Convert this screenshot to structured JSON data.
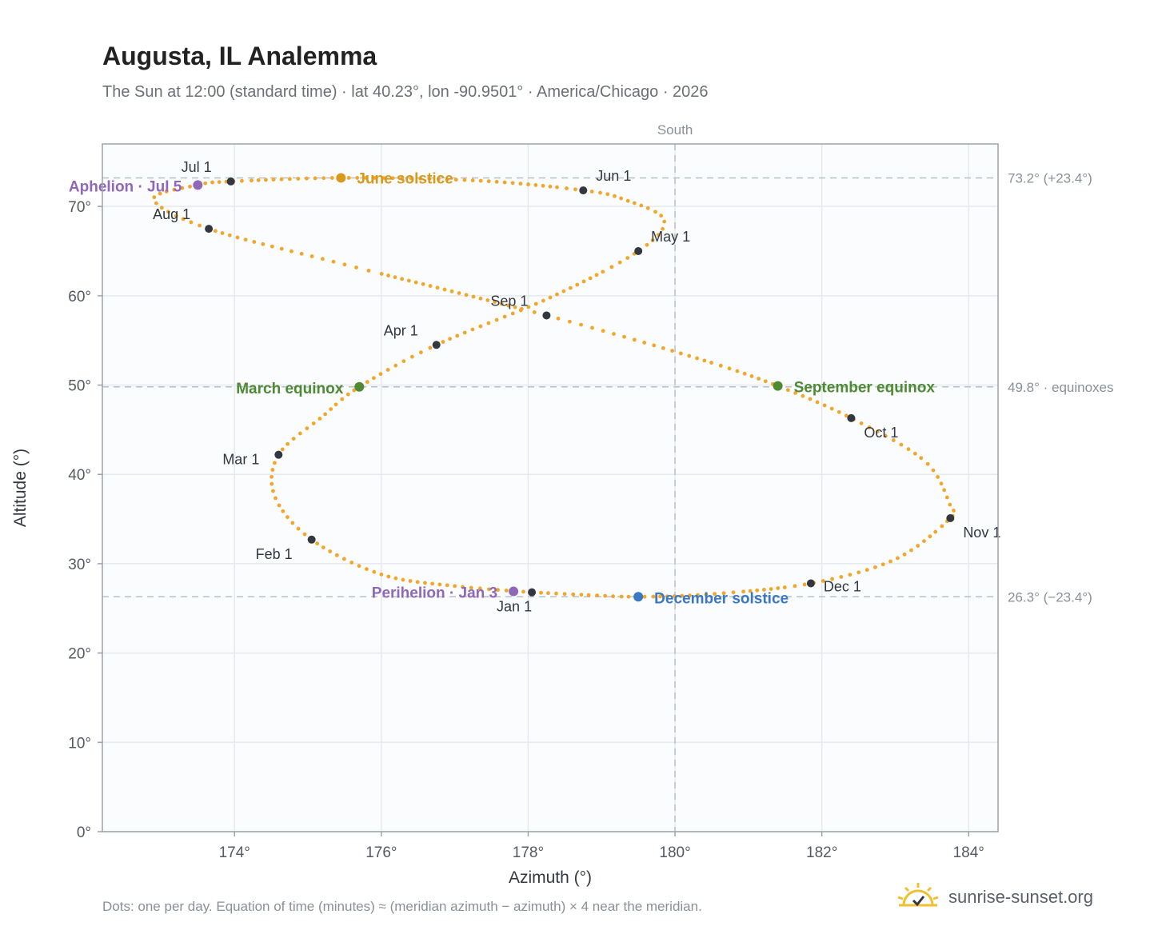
{
  "title": "Augusta, IL Analemma",
  "subtitle": "The Sun at 12:00 (standard time) · lat 40.23°, lon -90.9501° · America/Chicago · 2026",
  "footnote": "Dots: one per day. Equation of time (minutes) ≈ (meridian azimuth − azimuth) × 4 near the meridian.",
  "brand": {
    "name": "sunrise-sunset.org",
    "icon": "sun-logo-icon",
    "color": "#f0c030"
  },
  "chart_data": {
    "type": "scatter",
    "xlabel": "Azimuth (°)",
    "ylabel": "Altitude (°)",
    "xlim": [
      172.2,
      184.4
    ],
    "ylim": [
      0,
      77
    ],
    "xticks": [
      174,
      176,
      178,
      180,
      182,
      184
    ],
    "xtick_labels": [
      "174°",
      "176°",
      "178°",
      "180°",
      "182°",
      "184°"
    ],
    "yticks": [
      0,
      10,
      20,
      30,
      40,
      50,
      60,
      70
    ],
    "ytick_labels": [
      "0°",
      "10°",
      "20°",
      "30°",
      "40°",
      "50°",
      "60°",
      "70°"
    ],
    "grid": true,
    "meridian": {
      "azimuth": 180,
      "label": "South"
    },
    "reference_lines": [
      {
        "altitude": 73.2,
        "label": "73.2° (+23.4°)"
      },
      {
        "altitude": 49.8,
        "label": "49.8° · equinoxes"
      },
      {
        "altitude": 26.3,
        "label": "26.3° (−23.4°)"
      }
    ],
    "colors": {
      "path": "#f2a62a",
      "month": "#333840",
      "equinox": "#4e8a34",
      "june": "#d89a1c",
      "december": "#3a78c2",
      "apsis": "#9068b8",
      "grid": "#e6e9ee",
      "reference": "#b8c0c8",
      "plot_bg": "#fafcfe",
      "frame": "#9aa3ad"
    },
    "path_keypoints": [
      {
        "az": 178.05,
        "alt": 26.8
      },
      {
        "az": 177.0,
        "alt": 27.5
      },
      {
        "az": 176.0,
        "alt": 28.8
      },
      {
        "az": 175.05,
        "alt": 32.7
      },
      {
        "az": 174.55,
        "alt": 37.5
      },
      {
        "az": 174.6,
        "alt": 42.2
      },
      {
        "az": 175.2,
        "alt": 46.5
      },
      {
        "az": 175.7,
        "alt": 49.8
      },
      {
        "az": 176.75,
        "alt": 54.5
      },
      {
        "az": 178.3,
        "alt": 59.8
      },
      {
        "az": 179.5,
        "alt": 65.0
      },
      {
        "az": 179.85,
        "alt": 68.5
      },
      {
        "az": 179.3,
        "alt": 70.8
      },
      {
        "az": 178.75,
        "alt": 71.8
      },
      {
        "az": 177.3,
        "alt": 72.9
      },
      {
        "az": 175.5,
        "alt": 73.2
      },
      {
        "az": 173.95,
        "alt": 72.8
      },
      {
        "az": 173.5,
        "alt": 72.4
      },
      {
        "az": 172.9,
        "alt": 70.8
      },
      {
        "az": 173.65,
        "alt": 67.5
      },
      {
        "az": 175.5,
        "alt": 63.5
      },
      {
        "az": 178.25,
        "alt": 57.8
      },
      {
        "az": 180.3,
        "alt": 53.0
      },
      {
        "az": 181.4,
        "alt": 49.9
      },
      {
        "az": 182.4,
        "alt": 46.3
      },
      {
        "az": 183.4,
        "alt": 41.5
      },
      {
        "az": 183.75,
        "alt": 36.5
      },
      {
        "az": 183.75,
        "alt": 35.1
      },
      {
        "az": 183.0,
        "alt": 30.5
      },
      {
        "az": 181.85,
        "alt": 27.8
      },
      {
        "az": 180.5,
        "alt": 26.6
      },
      {
        "az": 179.5,
        "alt": 26.3
      },
      {
        "az": 178.8,
        "alt": 26.5
      },
      {
        "az": 178.05,
        "alt": 26.8
      }
    ],
    "month_points": [
      {
        "label": "Jan 1",
        "az": 178.05,
        "alt": 26.8
      },
      {
        "label": "Feb 1",
        "az": 175.05,
        "alt": 32.7
      },
      {
        "label": "Mar 1",
        "az": 174.6,
        "alt": 42.2
      },
      {
        "label": "Apr 1",
        "az": 176.75,
        "alt": 54.5
      },
      {
        "label": "May 1",
        "az": 179.5,
        "alt": 65.0
      },
      {
        "label": "Jun 1",
        "az": 178.75,
        "alt": 71.8
      },
      {
        "label": "Jul 1",
        "az": 173.95,
        "alt": 72.8
      },
      {
        "label": "Aug 1",
        "az": 173.65,
        "alt": 67.5
      },
      {
        "label": "Sep 1",
        "az": 178.25,
        "alt": 57.8
      },
      {
        "label": "Oct 1",
        "az": 182.4,
        "alt": 46.3
      },
      {
        "label": "Nov 1",
        "az": 183.75,
        "alt": 35.1
      },
      {
        "label": "Dec 1",
        "az": 181.85,
        "alt": 27.8
      }
    ],
    "events": [
      {
        "label": "June solstice",
        "az": 175.45,
        "alt": 73.2,
        "color": "june"
      },
      {
        "label": "December solstice",
        "az": 179.5,
        "alt": 26.3,
        "color": "december"
      },
      {
        "label": "March equinox",
        "az": 175.7,
        "alt": 49.8,
        "color": "equinox"
      },
      {
        "label": "September equinox",
        "az": 181.4,
        "alt": 49.9,
        "color": "equinox"
      },
      {
        "label": "Aphelion · Jul 5",
        "az": 173.5,
        "alt": 72.4,
        "color": "apsis"
      },
      {
        "label": "Perihelion · Jan 3",
        "az": 177.8,
        "alt": 26.9,
        "color": "apsis"
      }
    ]
  }
}
